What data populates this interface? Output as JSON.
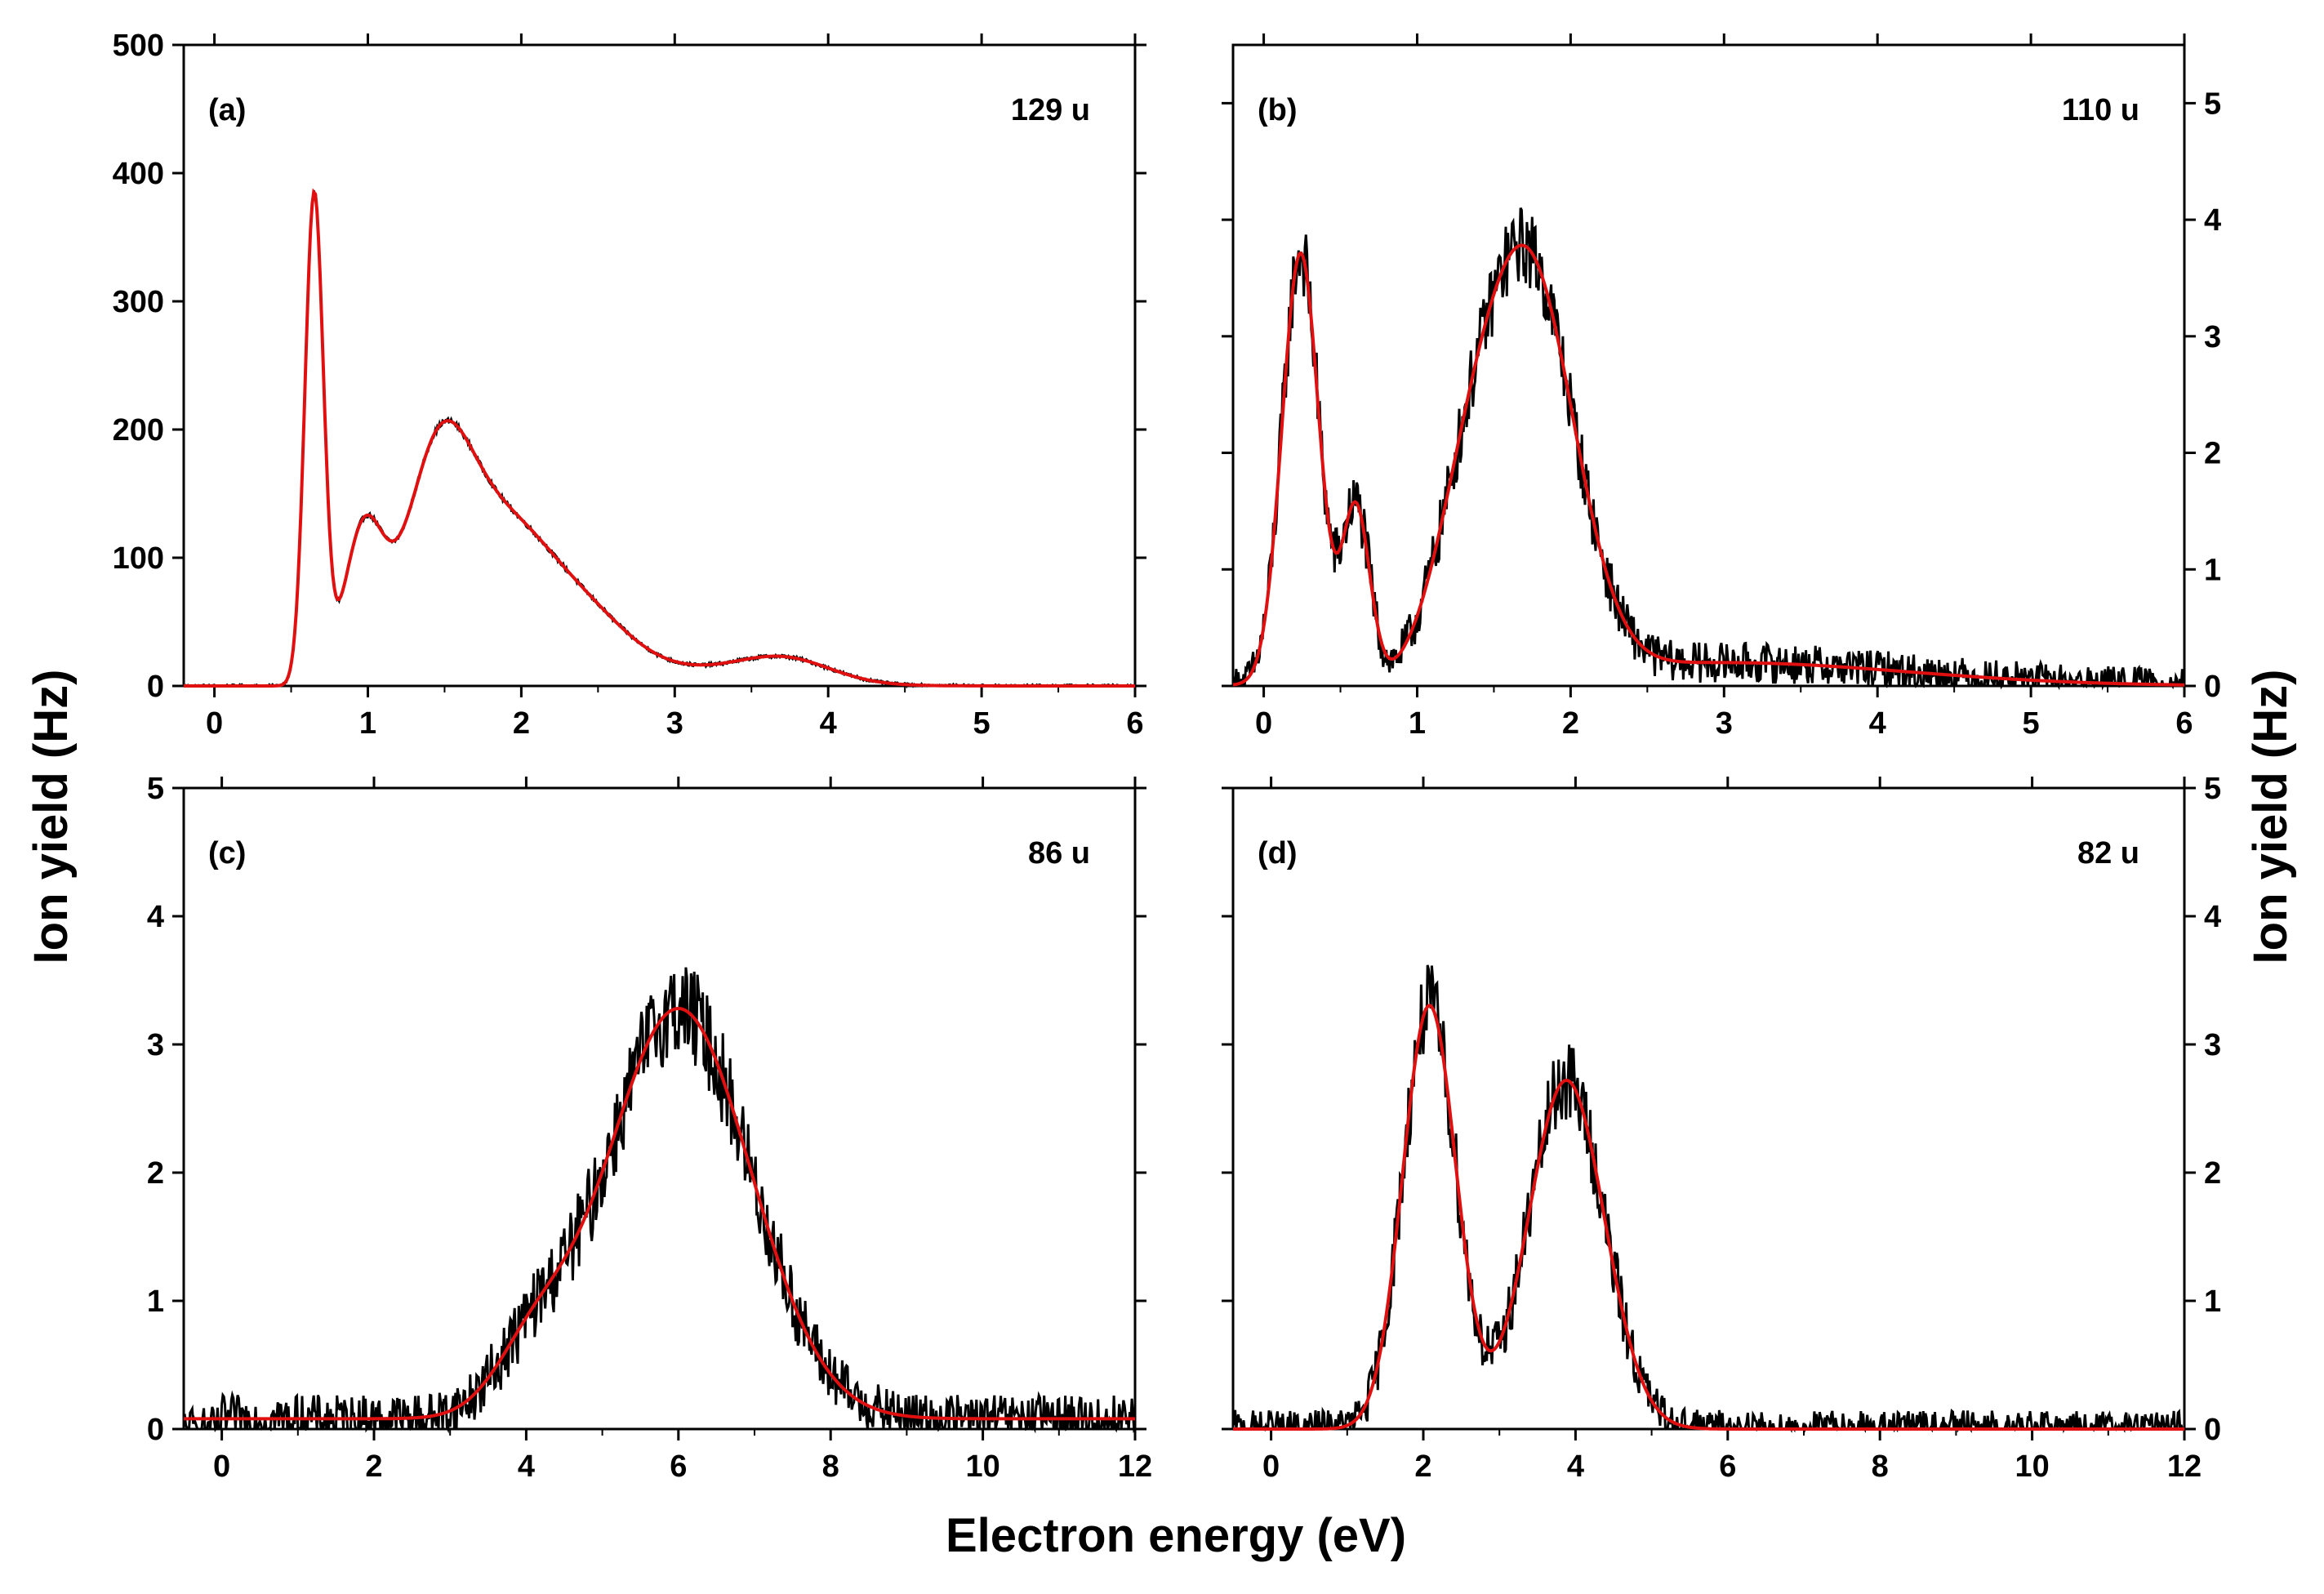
{
  "figure": {
    "shared_xlabel": "Electron energy (eV)",
    "shared_ylabel_left": "Ion yield (Hz)",
    "shared_ylabel_right": "Ion yield (Hz)"
  },
  "colors": {
    "data": "#000000",
    "fit": "#e01010",
    "frame": "#000000"
  },
  "chart_data": [
    {
      "id": "a",
      "type": "line",
      "panel_label": "(a)",
      "mass_label": "129 u",
      "xlim": [
        -0.2,
        6
      ],
      "ylim": [
        0,
        500
      ],
      "xticks": [
        0,
        1,
        2,
        3,
        4,
        5,
        6
      ],
      "yticks": [
        0,
        100,
        200,
        300,
        400,
        500
      ],
      "ytick_side": "left",
      "noise": 2.0,
      "fit_peaks": [
        {
          "A": 380,
          "mu": 0.65,
          "sigma": 0.06
        },
        {
          "A": 115,
          "mu": 0.97,
          "sigma": 0.13
        },
        {
          "A": 160,
          "mu": 1.45,
          "sigma": 0.22
        },
        {
          "A": 110,
          "mu": 1.88,
          "sigma": 0.3
        },
        {
          "A": 45,
          "mu": 2.4,
          "sigma": 0.3
        },
        {
          "A": 12,
          "mu": 3.0,
          "sigma": 0.6
        },
        {
          "A": 17,
          "mu": 3.72,
          "sigma": 0.3
        }
      ],
      "fit_baseline": 0,
      "onset": 0.25
    },
    {
      "id": "b",
      "type": "line",
      "panel_label": "(b)",
      "mass_label": "110 u",
      "xlim": [
        -0.2,
        6
      ],
      "ylim": [
        0,
        5.5
      ],
      "xticks": [
        0,
        1,
        2,
        3,
        4,
        5,
        6
      ],
      "yticks": [
        0,
        1,
        2,
        3,
        4,
        5
      ],
      "ytick_side": "right",
      "noise": 0.3,
      "fit_peaks": [
        {
          "A": 3.7,
          "mu": 0.24,
          "sigma": 0.12
        },
        {
          "A": 1.5,
          "mu": 0.6,
          "sigma": 0.09
        },
        {
          "A": 0.9,
          "mu": 1.3,
          "sigma": 0.22
        },
        {
          "A": 3.5,
          "mu": 1.72,
          "sigma": 0.3
        },
        {
          "A": 0.2,
          "mu": 3.0,
          "sigma": 1.2
        }
      ],
      "fit_baseline": 0,
      "onset": -0.2
    },
    {
      "id": "c",
      "type": "line",
      "panel_label": "(c)",
      "mass_label": "86 u",
      "xlim": [
        -0.5,
        12
      ],
      "ylim": [
        0,
        5
      ],
      "xticks": [
        0,
        2,
        4,
        6,
        8,
        10,
        12
      ],
      "yticks": [
        0,
        1,
        2,
        3,
        4,
        5
      ],
      "ytick_side": "left",
      "noise": 0.35,
      "fit_peaks": [
        {
          "A": 0.45,
          "mu": 4.1,
          "sigma": 0.5
        },
        {
          "A": 3.2,
          "mu": 6.0,
          "sigma": 0.95
        }
      ],
      "fit_baseline": 0.08,
      "onset": 0.0
    },
    {
      "id": "d",
      "type": "line",
      "panel_label": "(d)",
      "mass_label": "82 u",
      "xlim": [
        -0.5,
        12
      ],
      "ylim": [
        0,
        5
      ],
      "xticks": [
        0,
        2,
        4,
        6,
        8,
        10,
        12
      ],
      "yticks": [
        0,
        1,
        2,
        3,
        4,
        5
      ],
      "ytick_side": "right",
      "noise": 0.3,
      "fit_peaks": [
        {
          "A": 3.3,
          "mu": 2.08,
          "sigma": 0.35
        },
        {
          "A": 2.72,
          "mu": 3.88,
          "sigma": 0.5
        }
      ],
      "fit_baseline": 0,
      "onset": 0.0
    }
  ]
}
